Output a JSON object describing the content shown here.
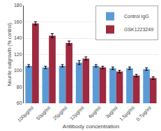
{
  "chart_data": {
    "type": "bar",
    "xlabel": "Antibody concentration",
    "ylabel": "Neurite outgrowth (% control)",
    "categories": [
      "100µg/ml",
      "50µg/ml",
      "25µg/ml",
      "12µg/ml",
      "6µg/ml",
      "3µg/ml",
      "1.5µg/ml",
      "0.7µg/ml"
    ],
    "series": [
      {
        "name": "Control IgG",
        "color": "#5B9BD5",
        "values": [
          106,
          104,
          106,
          110,
          106,
          103,
          103,
          102
        ],
        "errors": [
          1.5,
          1.5,
          1.5,
          2.5,
          1.5,
          1.5,
          1.5,
          1.5
        ]
      },
      {
        "name": "GSK1223249",
        "color": "#9E2A40",
        "values": [
          158,
          143,
          134,
          115,
          104,
          99,
          94,
          91
        ],
        "errors": [
          2.0,
          2.5,
          2.5,
          2.0,
          1.5,
          1.5,
          1.5,
          1.5
        ]
      }
    ],
    "ylim": [
      60,
      180
    ],
    "yticks": [
      60,
      80,
      100,
      120,
      140,
      160,
      180
    ],
    "grid": true,
    "legend": "upper right"
  }
}
